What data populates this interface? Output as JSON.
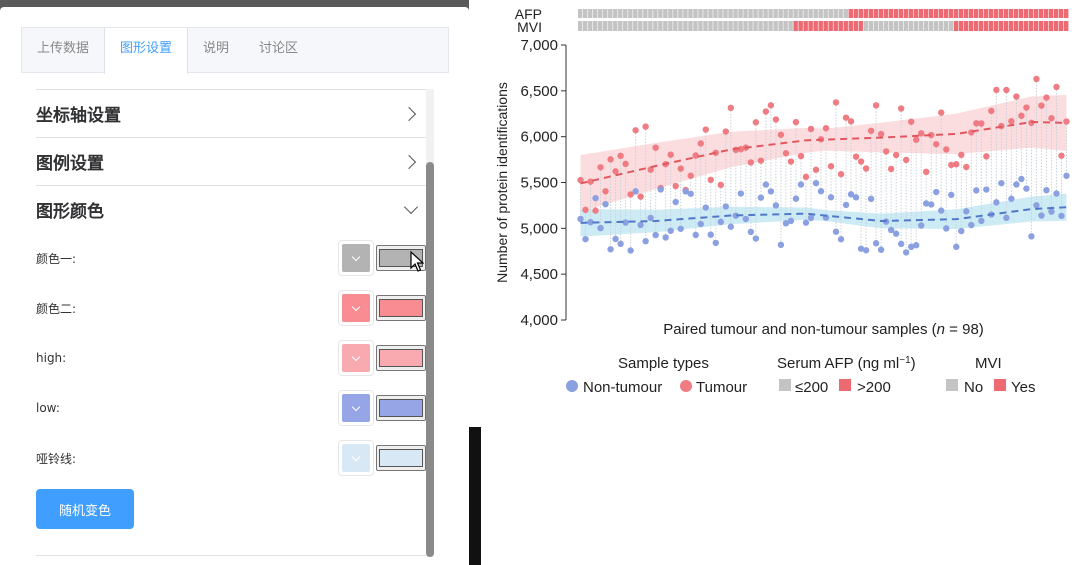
{
  "tabs": [
    {
      "label": "上传数据",
      "active": false
    },
    {
      "label": "图形设置",
      "active": true
    },
    {
      "label": "说明",
      "active": false
    },
    {
      "label": "讨论区",
      "active": false
    }
  ],
  "sections": {
    "axis": "坐标轴设置",
    "legend": "图例设置",
    "color": "图形颜色"
  },
  "colors": [
    {
      "label": "颜色一:",
      "hex": "#b3b3b3"
    },
    {
      "label": "颜色二:",
      "hex": "#f98b93"
    },
    {
      "label": "high:",
      "hex": "#f8aab0"
    },
    {
      "label": "low:",
      "hex": "#95a5e6"
    },
    {
      "label": "哑铃线:",
      "hex": "#d9e8f5"
    }
  ],
  "random_button": "随机变色",
  "chart_data": {
    "type": "scatter",
    "xlabel_prefix": "Paired tumour and non-tumour samples (",
    "xlabel_n": "n",
    "xlabel_suffix": " = 98)",
    "ylabel": "Number of protein identifications",
    "ylim": [
      4000,
      7000
    ],
    "yticks": [
      "4,000",
      "4,500",
      "5,000",
      "5,500",
      "6,000",
      "6,500",
      "7,000"
    ],
    "tracks": [
      "AFP",
      "MVI"
    ],
    "legend": {
      "sample_title": "Sample types",
      "non_tumour": "Non-tumour",
      "tumour": "Tumour",
      "afp_title": "Serum AFP (ng ml",
      "afp_sup": "−1",
      "afp_close": ")",
      "afp_low": "≤200",
      "afp_high": ">200",
      "mvi_title": "MVI",
      "mvi_no": "No",
      "mvi_yes": "Yes"
    },
    "colors": {
      "tumour": "#ef7b83",
      "non_tumour": "#8ba0e0",
      "tumour_band": "#fbd5d7",
      "non_tumour_band": "#bfe6f3",
      "track_grey": "#c4c4c4",
      "track_red": "#ee6a73",
      "connector": "#c9d1da"
    },
    "n": 98,
    "series": [
      {
        "name": "Tumour",
        "trend": [
          [
            0,
            5490
          ],
          [
            15,
            5680
          ],
          [
            30,
            5860
          ],
          [
            45,
            5960
          ],
          [
            60,
            5990
          ],
          [
            75,
            6030
          ],
          [
            90,
            6160
          ],
          [
            97,
            6150
          ]
        ]
      },
      {
        "name": "Non-tumour",
        "trend": [
          [
            0,
            5060
          ],
          [
            15,
            5080
          ],
          [
            30,
            5140
          ],
          [
            45,
            5160
          ],
          [
            60,
            5080
          ],
          [
            75,
            5100
          ],
          [
            90,
            5210
          ],
          [
            97,
            5230
          ]
        ]
      }
    ],
    "afp_high_from_index": 54,
    "mvi_yes_index_ranges": [
      [
        43,
        56
      ],
      [
        75,
        97
      ]
    ]
  }
}
